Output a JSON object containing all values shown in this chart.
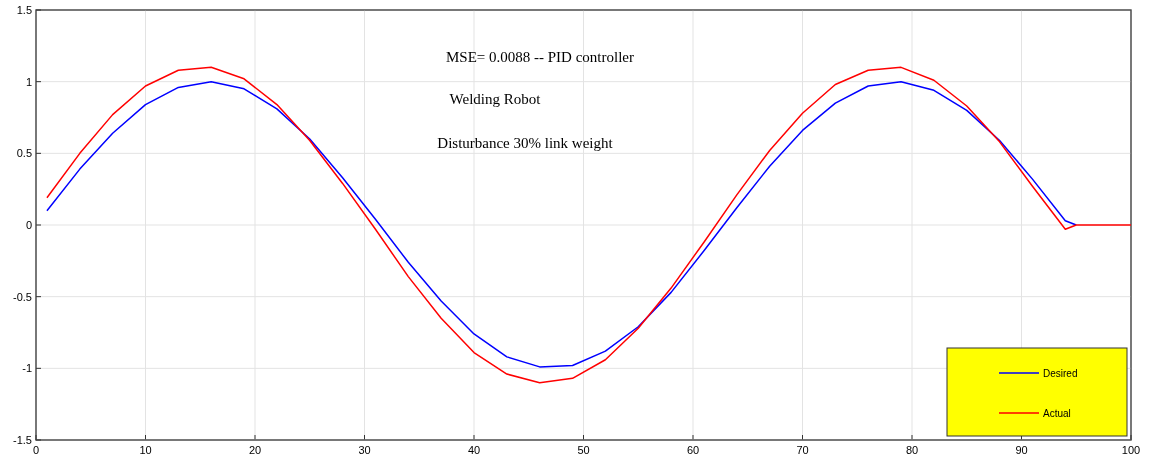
{
  "chart_data": {
    "type": "line",
    "x": [
      1,
      4,
      7,
      10,
      13,
      16,
      19,
      22,
      25,
      28,
      31,
      34,
      37,
      40,
      43,
      46,
      49,
      52,
      55,
      58,
      61,
      64,
      67,
      70,
      73,
      76,
      79,
      82,
      85,
      88,
      91,
      94,
      95,
      100
    ],
    "series": [
      {
        "name": "Desired",
        "color": "#0000ff",
        "values": [
          0.1,
          0.39,
          0.64,
          0.84,
          0.96,
          1.0,
          0.95,
          0.81,
          0.6,
          0.33,
          0.04,
          -0.26,
          -0.53,
          -0.76,
          -0.92,
          -0.99,
          -0.98,
          -0.88,
          -0.71,
          -0.47,
          -0.18,
          0.12,
          0.41,
          0.66,
          0.85,
          0.97,
          1.0,
          0.94,
          0.8,
          0.59,
          0.32,
          0.03,
          0,
          null
        ]
      },
      {
        "name": "Actual",
        "color": "#ff0000",
        "values": [
          0.19,
          0.5,
          0.77,
          0.97,
          1.08,
          1.1,
          1.02,
          0.84,
          0.59,
          0.29,
          -0.03,
          -0.36,
          -0.65,
          -0.89,
          -1.04,
          -1.1,
          -1.07,
          -0.94,
          -0.72,
          -0.44,
          -0.12,
          0.21,
          0.52,
          0.78,
          0.98,
          1.08,
          1.1,
          1.01,
          0.83,
          0.58,
          0.27,
          -0.03,
          0,
          0
        ]
      }
    ],
    "xlim": [
      0,
      100
    ],
    "xticks": [
      0,
      10,
      20,
      30,
      40,
      50,
      60,
      70,
      80,
      90,
      100
    ],
    "ylim": [
      -1.5,
      1.5
    ],
    "yticks": [
      -1.5,
      -1,
      -0.5,
      0,
      0.5,
      1,
      1.5
    ],
    "grid": true,
    "legend": "bottom right",
    "line_style": "solid",
    "annotations": [
      "MSE= 0.0088  -- PID controller",
      "Welding Robot",
      "Disturbance 30% link weight"
    ]
  }
}
